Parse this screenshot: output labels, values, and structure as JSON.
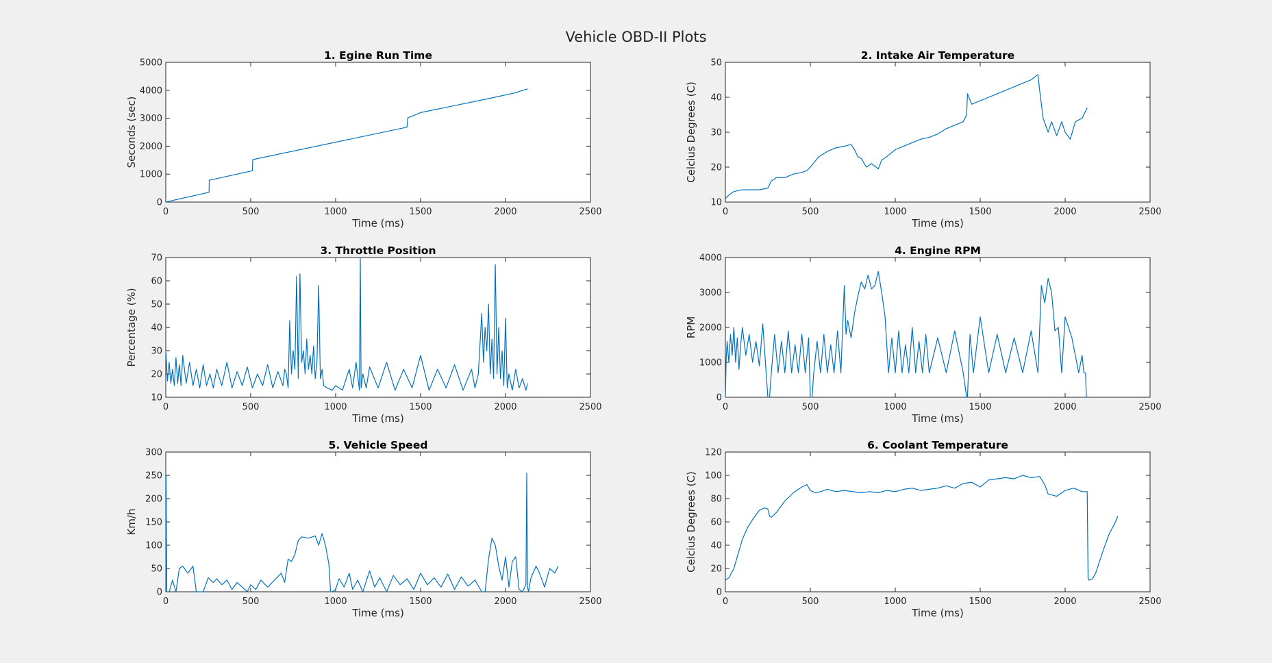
{
  "figure": {
    "title": "Vehicle OBD-II Plots",
    "line_color": "#0072bd",
    "background": "#f0f0f0"
  },
  "chart_data": [
    {
      "type": "line",
      "title": "1. Egine Run Time",
      "xlabel": "Time (ms)",
      "ylabel": "Seconds (sec)",
      "xlim": [
        0,
        2500
      ],
      "ylim": [
        0,
        5000
      ],
      "xticks": [
        0,
        500,
        1000,
        1500,
        2000,
        2500
      ],
      "yticks": [
        0,
        1000,
        2000,
        3000,
        4000,
        5000
      ],
      "series": [
        {
          "x": [
            0,
            255,
            256,
            510,
            512,
            1420,
            1425,
            1500,
            1700,
            1900,
            2050,
            2130
          ],
          "y": [
            0,
            350,
            780,
            1120,
            1520,
            2680,
            3010,
            3200,
            3450,
            3700,
            3900,
            4050
          ]
        }
      ]
    },
    {
      "type": "line",
      "title": "2. Intake Air Temperature",
      "xlabel": "Time (ms)",
      "ylabel": "Celcius Degrees (C)",
      "xlim": [
        0,
        2500
      ],
      "ylim": [
        10,
        50
      ],
      "xticks": [
        0,
        500,
        1000,
        1500,
        2000,
        2500
      ],
      "yticks": [
        10,
        20,
        30,
        40,
        50
      ],
      "series": [
        {
          "x": [
            0,
            20,
            50,
            100,
            150,
            200,
            250,
            270,
            300,
            350,
            400,
            450,
            480,
            500,
            550,
            600,
            650,
            700,
            740,
            760,
            780,
            800,
            830,
            860,
            900,
            920,
            950,
            1000,
            1050,
            1100,
            1150,
            1200,
            1250,
            1300,
            1350,
            1400,
            1420,
            1425,
            1450,
            1500,
            1550,
            1600,
            1650,
            1700,
            1750,
            1800,
            1840,
            1850,
            1870,
            1900,
            1920,
            1950,
            1980,
            2000,
            2030,
            2060,
            2100,
            2130
          ],
          "y": [
            11,
            12,
            13,
            13.5,
            13.5,
            13.5,
            14,
            16,
            17,
            17,
            18,
            18.5,
            19,
            20,
            23,
            24.5,
            25.5,
            26,
            26.5,
            25,
            23,
            22.5,
            20,
            21,
            19.5,
            22,
            23,
            25,
            26,
            27,
            28,
            28.5,
            29.5,
            31,
            32,
            33,
            35,
            41,
            38,
            39,
            40,
            41,
            42,
            43,
            44,
            45,
            46.5,
            42,
            34,
            30,
            33,
            29,
            33,
            30,
            28,
            33,
            34,
            37
          ]
        }
      ]
    },
    {
      "type": "line",
      "title": "3. Throttle Position",
      "xlabel": "Time (ms)",
      "ylabel": "Percentage (%)",
      "xlim": [
        0,
        2500
      ],
      "ylim": [
        10,
        70
      ],
      "xticks": [
        0,
        500,
        1000,
        1500,
        2000,
        2500
      ],
      "yticks": [
        10,
        20,
        30,
        40,
        50,
        60,
        70
      ],
      "series": [
        {
          "x": [
            0,
            10,
            20,
            30,
            40,
            50,
            60,
            70,
            80,
            90,
            100,
            120,
            140,
            160,
            180,
            200,
            220,
            240,
            260,
            280,
            300,
            330,
            360,
            390,
            420,
            450,
            480,
            510,
            540,
            570,
            600,
            630,
            660,
            690,
            700,
            710,
            720,
            730,
            740,
            750,
            760,
            770,
            780,
            790,
            800,
            810,
            820,
            830,
            840,
            850,
            860,
            870,
            880,
            890,
            900,
            910,
            920,
            930,
            950,
            980,
            1000,
            1040,
            1080,
            1100,
            1120,
            1140,
            1145,
            1150,
            1160,
            1180,
            1200,
            1250,
            1300,
            1350,
            1400,
            1450,
            1500,
            1550,
            1600,
            1650,
            1700,
            1750,
            1800,
            1820,
            1840,
            1860,
            1870,
            1880,
            1890,
            1900,
            1910,
            1920,
            1930,
            1940,
            1950,
            1960,
            1970,
            1980,
            1990,
            2000,
            2010,
            2020,
            2040,
            2060,
            2080,
            2100,
            2120,
            2130
          ],
          "y": [
            30,
            17,
            25,
            16,
            22,
            15,
            27,
            16,
            24,
            15,
            28,
            16,
            25,
            15,
            22,
            14,
            24,
            15,
            20,
            14,
            22,
            15,
            25,
            14,
            21,
            15,
            23,
            14,
            20,
            15,
            24,
            14,
            21,
            15,
            22,
            20,
            14,
            43,
            20,
            30,
            22,
            62,
            18,
            63,
            25,
            30,
            20,
            35,
            22,
            28,
            20,
            32,
            18,
            25,
            58,
            18,
            22,
            15,
            14,
            13,
            15,
            13,
            22,
            14,
            25,
            13,
            70,
            14,
            20,
            14,
            23,
            14,
            25,
            13,
            22,
            14,
            28,
            13,
            22,
            14,
            24,
            13,
            22,
            14,
            20,
            46,
            25,
            40,
            30,
            50,
            20,
            35,
            18,
            67,
            20,
            40,
            18,
            30,
            15,
            44,
            14,
            20,
            13,
            22,
            14,
            18,
            13,
            16
          ]
        }
      ]
    },
    {
      "type": "line",
      "title": "4. Engine RPM",
      "xlabel": "Time (ms)",
      "ylabel": "RPM",
      "xlim": [
        0,
        2500
      ],
      "ylim": [
        0,
        4000
      ],
      "xticks": [
        0,
        500,
        1000,
        1500,
        2000,
        2500
      ],
      "yticks": [
        0,
        1000,
        2000,
        3000,
        4000
      ],
      "series": [
        {
          "x": [
            0,
            5,
            10,
            20,
            30,
            40,
            50,
            60,
            70,
            80,
            90,
            100,
            120,
            140,
            160,
            180,
            200,
            220,
            240,
            250,
            260,
            270,
            290,
            310,
            330,
            350,
            370,
            390,
            410,
            430,
            450,
            470,
            490,
            500,
            510,
            520,
            540,
            560,
            580,
            600,
            620,
            640,
            660,
            680,
            700,
            710,
            720,
            740,
            760,
            780,
            800,
            820,
            840,
            860,
            880,
            900,
            920,
            940,
            960,
            980,
            1000,
            1020,
            1040,
            1060,
            1080,
            1100,
            1120,
            1140,
            1160,
            1180,
            1200,
            1250,
            1300,
            1350,
            1400,
            1420,
            1425,
            1440,
            1460,
            1500,
            1550,
            1600,
            1650,
            1700,
            1750,
            1800,
            1840,
            1860,
            1880,
            1900,
            1920,
            1940,
            1960,
            1980,
            2000,
            2040,
            2080,
            2100,
            2110,
            2120,
            2125
          ],
          "y": [
            0,
            1100,
            1600,
            1000,
            1800,
            1200,
            2000,
            1000,
            1700,
            800,
            1500,
            2000,
            1200,
            1800,
            1000,
            1600,
            900,
            2100,
            700,
            0,
            0,
            700,
            1800,
            700,
            1600,
            700,
            1900,
            700,
            1500,
            700,
            1800,
            700,
            1700,
            0,
            0,
            700,
            1600,
            700,
            1800,
            700,
            1500,
            700,
            1900,
            700,
            3200,
            1800,
            2200,
            1700,
            2400,
            2900,
            3300,
            3100,
            3500,
            3100,
            3200,
            3600,
            3000,
            2300,
            700,
            1700,
            700,
            1900,
            700,
            1500,
            700,
            2000,
            700,
            1600,
            700,
            1800,
            700,
            1700,
            700,
            1900,
            700,
            0,
            0,
            1800,
            700,
            2300,
            700,
            1800,
            700,
            1700,
            700,
            1900,
            700,
            3200,
            2700,
            3400,
            3000,
            1900,
            2000,
            700,
            2300,
            1700,
            700,
            1200,
            700,
            700,
            0
          ]
        }
      ]
    },
    {
      "type": "line",
      "title": "5. Vehicle Speed",
      "xlabel": "Time (ms)",
      "ylabel": "Km/h",
      "xlim": [
        0,
        2500
      ],
      "ylim": [
        0,
        300
      ],
      "xticks": [
        0,
        500,
        1000,
        1500,
        2000,
        2500
      ],
      "yticks": [
        0,
        50,
        100,
        150,
        200,
        250,
        300
      ],
      "series": [
        {
          "x": [
            0,
            2,
            4,
            6,
            10,
            20,
            40,
            60,
            80,
            100,
            130,
            160,
            180,
            200,
            220,
            250,
            280,
            300,
            330,
            360,
            390,
            420,
            450,
            480,
            500,
            530,
            560,
            600,
            640,
            680,
            700,
            720,
            740,
            760,
            780,
            800,
            840,
            880,
            900,
            920,
            940,
            960,
            970,
            980,
            1000,
            1020,
            1050,
            1080,
            1100,
            1130,
            1160,
            1200,
            1230,
            1260,
            1300,
            1340,
            1380,
            1420,
            1460,
            1500,
            1540,
            1580,
            1620,
            1660,
            1700,
            1740,
            1780,
            1820,
            1860,
            1880,
            1900,
            1920,
            1940,
            1960,
            1980,
            2000,
            2020,
            2040,
            2060,
            2080,
            2100,
            2120,
            2125,
            2130,
            2135,
            2150,
            2180,
            2200,
            2230,
            2260,
            2290,
            2310
          ],
          "y": [
            0,
            250,
            120,
            0,
            0,
            0,
            25,
            0,
            50,
            55,
            40,
            55,
            0,
            0,
            0,
            30,
            20,
            28,
            15,
            25,
            5,
            20,
            10,
            0,
            15,
            5,
            25,
            10,
            25,
            40,
            20,
            70,
            65,
            80,
            110,
            118,
            115,
            120,
            100,
            125,
            100,
            60,
            0,
            0,
            5,
            28,
            10,
            40,
            5,
            25,
            0,
            45,
            10,
            30,
            0,
            35,
            15,
            28,
            5,
            40,
            15,
            30,
            10,
            38,
            5,
            32,
            12,
            25,
            0,
            0,
            70,
            115,
            100,
            55,
            25,
            75,
            10,
            65,
            75,
            5,
            0,
            15,
            255,
            10,
            0,
            30,
            55,
            40,
            10,
            50,
            40,
            55
          ]
        }
      ]
    },
    {
      "type": "line",
      "title": "6. Coolant Temperature",
      "xlabel": "Time (ms)",
      "ylabel": "Celcius Degrees (C)",
      "xlim": [
        0,
        2500
      ],
      "ylim": [
        0,
        120
      ],
      "xticks": [
        0,
        500,
        1000,
        1500,
        2000,
        2500
      ],
      "yticks": [
        0,
        20,
        40,
        60,
        80,
        100,
        120
      ],
      "series": [
        {
          "x": [
            0,
            20,
            50,
            80,
            100,
            130,
            160,
            200,
            230,
            250,
            260,
            270,
            300,
            350,
            400,
            450,
            480,
            500,
            530,
            560,
            600,
            650,
            700,
            750,
            800,
            850,
            900,
            950,
            1000,
            1050,
            1100,
            1150,
            1200,
            1250,
            1300,
            1350,
            1400,
            1450,
            1500,
            1550,
            1600,
            1650,
            1700,
            1750,
            1800,
            1850,
            1880,
            1900,
            1950,
            2000,
            2050,
            2100,
            2130,
            2135,
            2140,
            2160,
            2180,
            2200,
            2230,
            2260,
            2290,
            2310
          ],
          "y": [
            10,
            12,
            20,
            35,
            45,
            55,
            62,
            70,
            72,
            71,
            65,
            64,
            68,
            78,
            85,
            90,
            92,
            87,
            85,
            86,
            88,
            86,
            87,
            86,
            85,
            86,
            85,
            87,
            86,
            88,
            89,
            87,
            88,
            89,
            91,
            89,
            93,
            94,
            90,
            96,
            97,
            98,
            97,
            100,
            98,
            99,
            92,
            84,
            82,
            87,
            89,
            86,
            86,
            12,
            10,
            11,
            16,
            25,
            38,
            50,
            58,
            65
          ]
        }
      ]
    }
  ]
}
